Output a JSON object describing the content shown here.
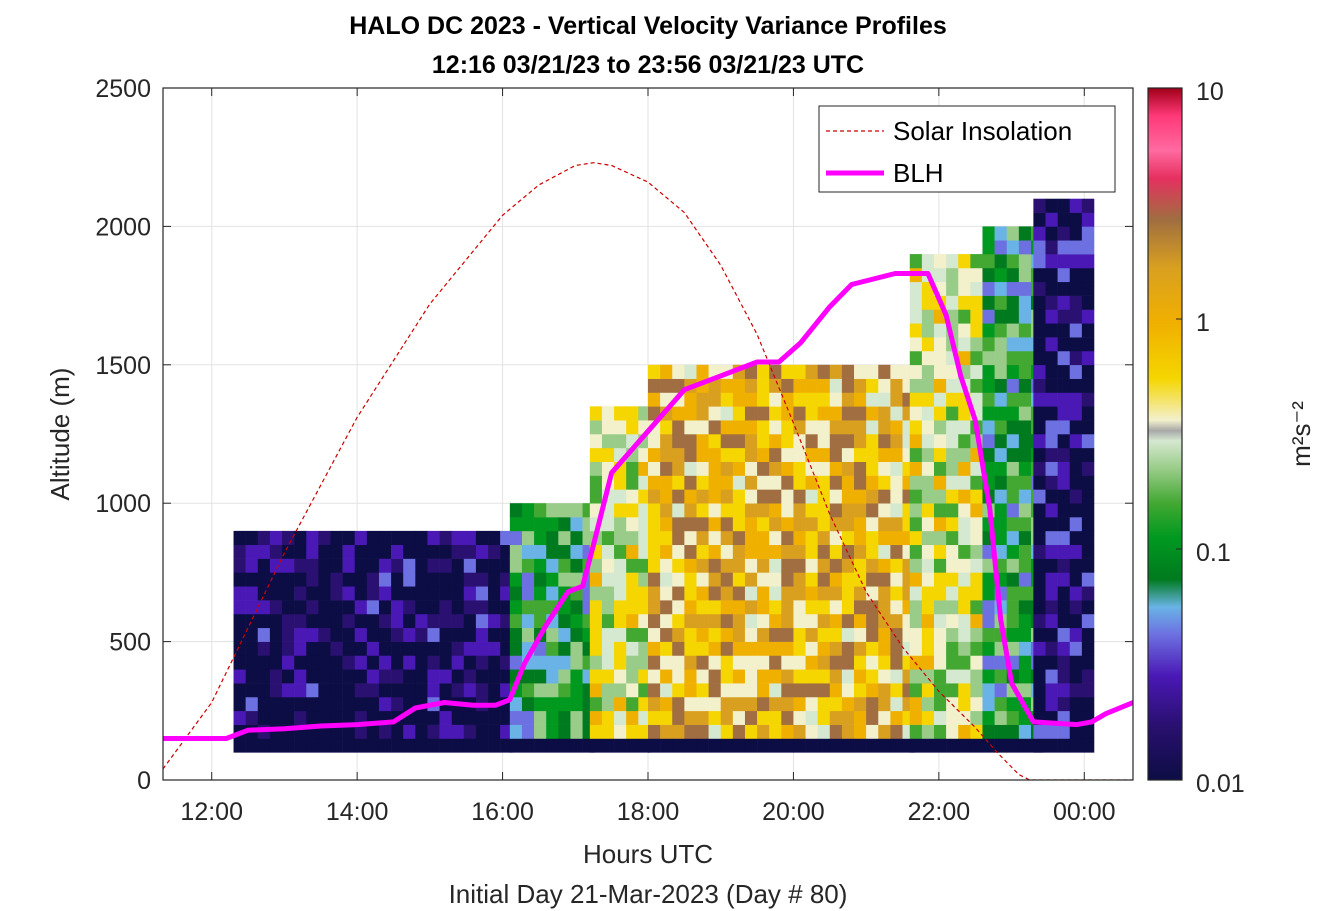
{
  "chart_data": {
    "type": "heatmap",
    "title": "HALO DC 2023 - Vertical Velocity Variance Profiles",
    "subtitle": "12:16 03/21/23 to 23:56 03/21/23  UTC",
    "xlabel": "Hours UTC",
    "footer": "Initial Day 21-Mar-2023 (Day # 80)",
    "ylabel": "Altitude (m)",
    "xlim_hours": [
      11.33,
      24.67
    ],
    "ylim": [
      0,
      2500
    ],
    "xticks": [
      12,
      14,
      16,
      18,
      20,
      22,
      24
    ],
    "xtick_labels": [
      "12:00",
      "14:00",
      "16:00",
      "18:00",
      "20:00",
      "22:00",
      "00:00"
    ],
    "yticks": [
      0,
      500,
      1000,
      1500,
      2000,
      2500
    ],
    "ytick_labels": [
      "0",
      "500",
      "1000",
      "1500",
      "2000",
      "2500"
    ],
    "grid": true,
    "colorbar": {
      "label": "m²s⁻²",
      "scale": "log",
      "range": [
        0.01,
        10
      ],
      "tick_labels": [
        "0.01",
        "0.1",
        "1",
        "10"
      ],
      "colors": [
        "#0d0d45",
        "#2a1070",
        "#4a18b5",
        "#6d70e0",
        "#69b3e6",
        "#007a1e",
        "#009920",
        "#42a832",
        "#99cc88",
        "#d5e8d0",
        "#f3f0cc",
        "#f5d600",
        "#f0b000",
        "#d9a020",
        "#a06e40",
        "#e63060",
        "#ff6aa0",
        "#ff3878",
        "#cc0020",
        "#a00018"
      ]
    },
    "legend": {
      "placement": "top-right",
      "entries": [
        "Solar Insolation",
        "BLH"
      ]
    },
    "series": [
      {
        "name": "BLH",
        "color": "#ff00ff",
        "x_hours": [
          11.33,
          12.2,
          12.5,
          13.0,
          13.5,
          14.0,
          14.5,
          14.8,
          15.2,
          15.6,
          15.9,
          16.1,
          16.3,
          16.6,
          16.9,
          17.1,
          17.25,
          17.5,
          18.0,
          18.5,
          19.0,
          19.5,
          19.8,
          20.1,
          20.5,
          20.8,
          21.1,
          21.4,
          21.6,
          21.85,
          22.1,
          22.3,
          22.5,
          22.7,
          22.85,
          23.0,
          23.3,
          23.6,
          23.9,
          24.1,
          24.3,
          24.67
        ],
        "y": [
          150,
          150,
          180,
          185,
          195,
          200,
          210,
          260,
          280,
          270,
          270,
          290,
          420,
          560,
          680,
          700,
          850,
          1110,
          1260,
          1410,
          1460,
          1510,
          1510,
          1580,
          1710,
          1790,
          1810,
          1830,
          1830,
          1830,
          1680,
          1460,
          1300,
          980,
          580,
          350,
          210,
          205,
          200,
          210,
          240,
          280
        ]
      },
      {
        "name": "Solar Insolation",
        "color": "#cc0000",
        "x_hours": [
          11.33,
          12.0,
          13.0,
          14.0,
          15.0,
          16.0,
          16.5,
          17.0,
          17.25,
          17.5,
          18.0,
          18.5,
          19.0,
          19.5,
          20.0,
          20.5,
          21.0,
          21.5,
          22.0,
          22.5,
          22.8,
          23.1,
          23.25,
          23.6,
          24.2,
          24.67
        ],
        "y": [
          40,
          280,
          820,
          1310,
          1720,
          2040,
          2150,
          2220,
          2230,
          2220,
          2160,
          2050,
          1860,
          1610,
          1290,
          960,
          680,
          480,
          320,
          190,
          100,
          20,
          0,
          0,
          0,
          0
        ]
      }
    ],
    "heatmap_regions": [
      {
        "x_hours": [
          12.3,
          16.1
        ],
        "y": [
          100,
          860
        ],
        "value": 0.012
      },
      {
        "x_hours": [
          16.1,
          17.2
        ],
        "y": [
          100,
          1000
        ],
        "value": 0.08
      },
      {
        "x_hours": [
          17.2,
          18.0
        ],
        "y": [
          100,
          1350
        ],
        "value": 0.3
      },
      {
        "x_hours": [
          18.0,
          21.6
        ],
        "y": [
          100,
          1500
        ],
        "value": 0.7
      },
      {
        "x_hours": [
          21.6,
          22.6
        ],
        "y": [
          100,
          1900
        ],
        "value": 0.3
      },
      {
        "x_hours": [
          22.6,
          23.3
        ],
        "y": [
          100,
          2000
        ],
        "value": 0.08
      },
      {
        "x_hours": [
          23.3,
          24.0
        ],
        "y": [
          100,
          2100
        ],
        "value": 0.015
      }
    ]
  }
}
